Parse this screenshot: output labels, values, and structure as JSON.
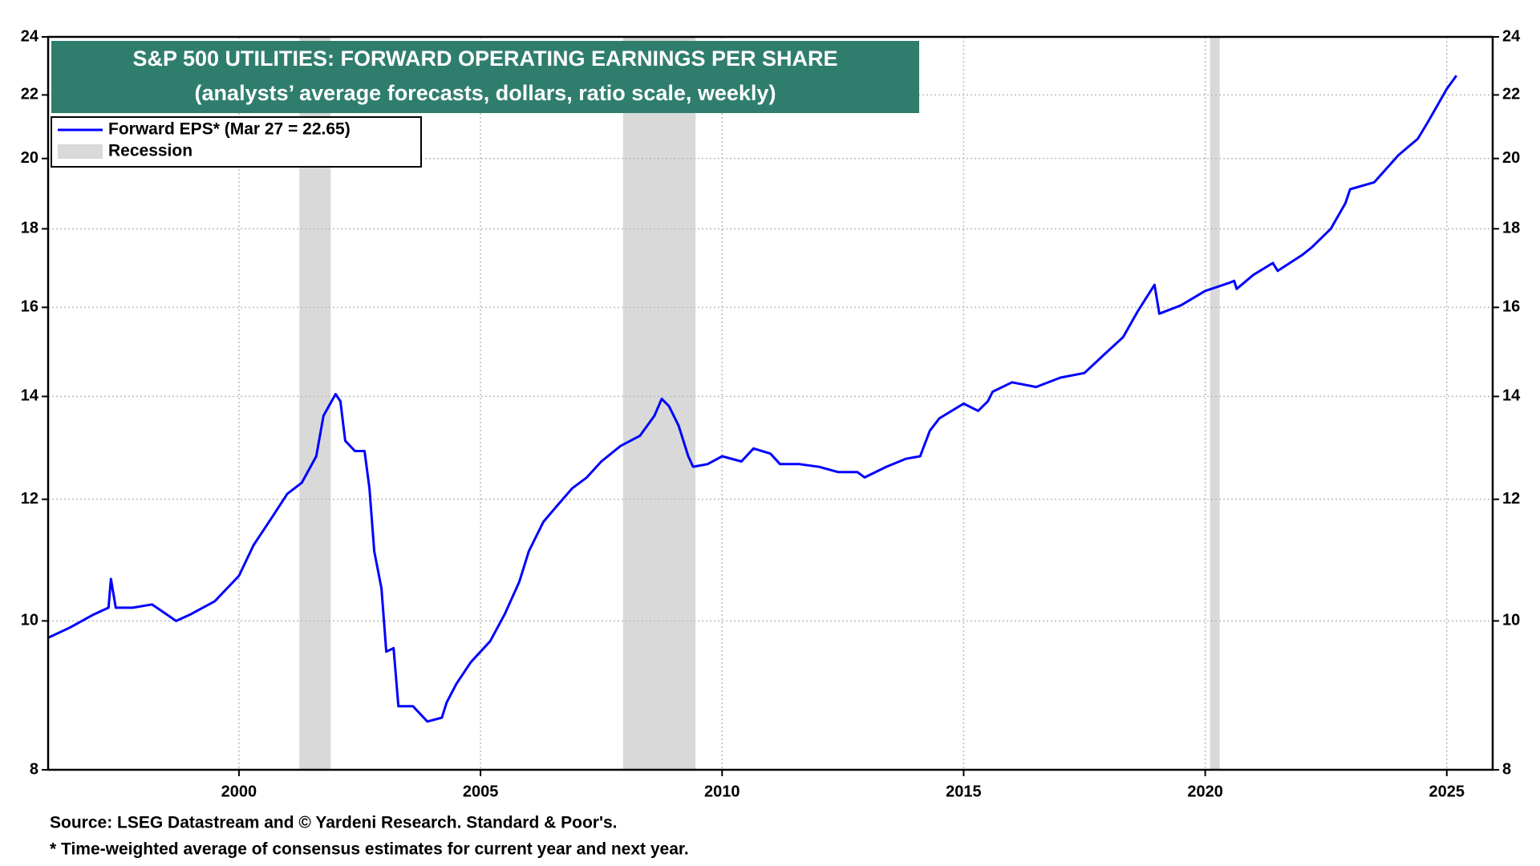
{
  "chart_data": {
    "type": "line",
    "title": "S&P 500 UTILITIES: FORWARD OPERATING EARNINGS PER SHARE",
    "subtitle": "(analysts’ average forecasts, dollars, ratio scale, weekly)",
    "log_scale": true,
    "grid": true,
    "legend_position": "upper left",
    "xlim": [
      1996.05,
      2025.95
    ],
    "xticks": [
      2000,
      2005,
      2010,
      2015,
      2020,
      2025
    ],
    "ylim": [
      8,
      24
    ],
    "yticks": [
      8,
      10,
      12,
      14,
      16,
      18,
      20,
      22,
      24
    ],
    "x": [
      1996.05,
      1996.5,
      1997.0,
      1997.3,
      1997.35,
      1997.45,
      1997.8,
      1998.2,
      1998.5,
      1998.7,
      1999.0,
      1999.5,
      2000.0,
      2000.3,
      2000.7,
      2001.0,
      2001.3,
      2001.6,
      2001.75,
      2002.0,
      2002.1,
      2002.2,
      2002.4,
      2002.6,
      2002.7,
      2002.8,
      2002.95,
      2003.05,
      2003.2,
      2003.3,
      2003.6,
      2003.9,
      2004.2,
      2004.3,
      2004.5,
      2004.8,
      2005.2,
      2005.5,
      2005.8,
      2006.0,
      2006.3,
      2006.6,
      2006.9,
      2007.2,
      2007.5,
      2007.9,
      2008.3,
      2008.6,
      2008.75,
      2008.9,
      2009.1,
      2009.3,
      2009.4,
      2009.7,
      2010.0,
      2010.4,
      2010.65,
      2011.0,
      2011.2,
      2011.6,
      2012.0,
      2012.4,
      2012.8,
      2012.95,
      2013.4,
      2013.8,
      2014.1,
      2014.3,
      2014.5,
      2015.0,
      2015.3,
      2015.5,
      2015.6,
      2016.0,
      2016.5,
      2017.0,
      2017.5,
      2017.9,
      2018.3,
      2018.6,
      2018.95,
      2019.05,
      2019.5,
      2020.0,
      2020.5,
      2020.6,
      2020.65,
      2021.0,
      2021.4,
      2021.5,
      2022.0,
      2022.2,
      2022.6,
      2022.9,
      2023.0,
      2023.5,
      2024.0,
      2024.4,
      2024.6,
      2025.0,
      2025.2
    ],
    "series": [
      {
        "name": "Forward EPS* (Mar 27 = 22.65)",
        "color": "#0000ff",
        "values": [
          9.75,
          9.9,
          10.1,
          10.2,
          10.65,
          10.2,
          10.2,
          10.25,
          10.1,
          10.0,
          10.1,
          10.3,
          10.7,
          11.2,
          11.7,
          12.1,
          12.3,
          12.8,
          13.6,
          14.05,
          13.9,
          13.1,
          12.9,
          12.9,
          12.2,
          11.1,
          10.5,
          9.55,
          9.6,
          8.8,
          8.8,
          8.6,
          8.65,
          8.85,
          9.1,
          9.4,
          9.7,
          10.1,
          10.6,
          11.1,
          11.6,
          11.9,
          12.2,
          12.4,
          12.7,
          13.0,
          13.2,
          13.6,
          13.95,
          13.8,
          13.4,
          12.8,
          12.6,
          12.65,
          12.8,
          12.7,
          12.95,
          12.85,
          12.65,
          12.65,
          12.6,
          12.5,
          12.5,
          12.4,
          12.6,
          12.75,
          12.8,
          13.3,
          13.55,
          13.85,
          13.7,
          13.9,
          14.1,
          14.3,
          14.2,
          14.4,
          14.5,
          14.9,
          15.3,
          15.9,
          16.55,
          15.85,
          16.05,
          16.4,
          16.6,
          16.65,
          16.45,
          16.8,
          17.1,
          16.9,
          17.3,
          17.5,
          18.0,
          18.7,
          19.1,
          19.3,
          20.1,
          20.6,
          21.1,
          22.2,
          22.65
        ]
      }
    ],
    "recessions": {
      "name": "Recession",
      "color": "#d9d9d9",
      "periods": [
        [
          2001.25,
          2001.9
        ],
        [
          2007.95,
          2009.45
        ],
        [
          2020.1,
          2020.3
        ]
      ]
    },
    "notes": [
      "Source: LSEG Datastream and © Yardeni Research. Standard & Poor's.",
      "* Time-weighted average of consensus estimates for current year and next year."
    ]
  }
}
